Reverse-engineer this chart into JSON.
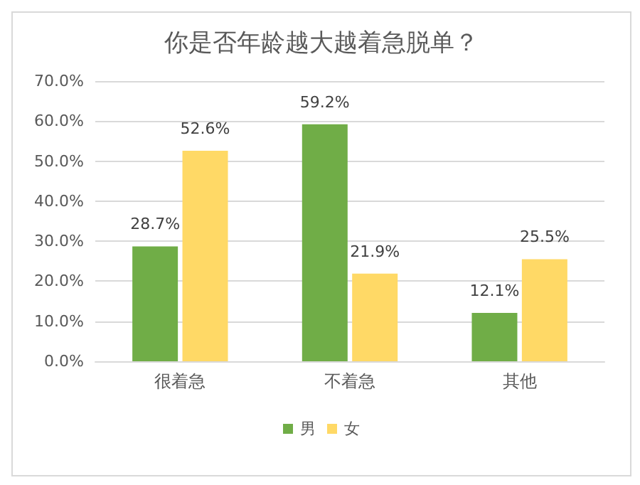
{
  "chart_data": {
    "type": "bar",
    "title": "你是否年龄越大越着急脱单？",
    "categories": [
      "很着急",
      "不着急",
      "其他"
    ],
    "series": [
      {
        "name": "男",
        "color": "#70ad47",
        "values": [
          28.7,
          59.2,
          12.1
        ],
        "value_labels": [
          "28.7%",
          "59.2%",
          "12.1%"
        ]
      },
      {
        "name": "女",
        "color": "#ffd966",
        "values": [
          52.6,
          21.9,
          25.5
        ],
        "value_labels": [
          "52.6%",
          "21.9%",
          "25.5%"
        ]
      }
    ],
    "ylim": [
      0,
      70
    ],
    "yticks": [
      {
        "value": 0,
        "label": "0.0%"
      },
      {
        "value": 10,
        "label": "10.0%"
      },
      {
        "value": 20,
        "label": "20.0%"
      },
      {
        "value": 30,
        "label": "30.0%"
      },
      {
        "value": 40,
        "label": "40.0%"
      },
      {
        "value": 50,
        "label": "50.0%"
      },
      {
        "value": 60,
        "label": "60.0%"
      },
      {
        "value": 70,
        "label": "70.0%"
      }
    ],
    "grid": true,
    "legend": "bottom"
  }
}
